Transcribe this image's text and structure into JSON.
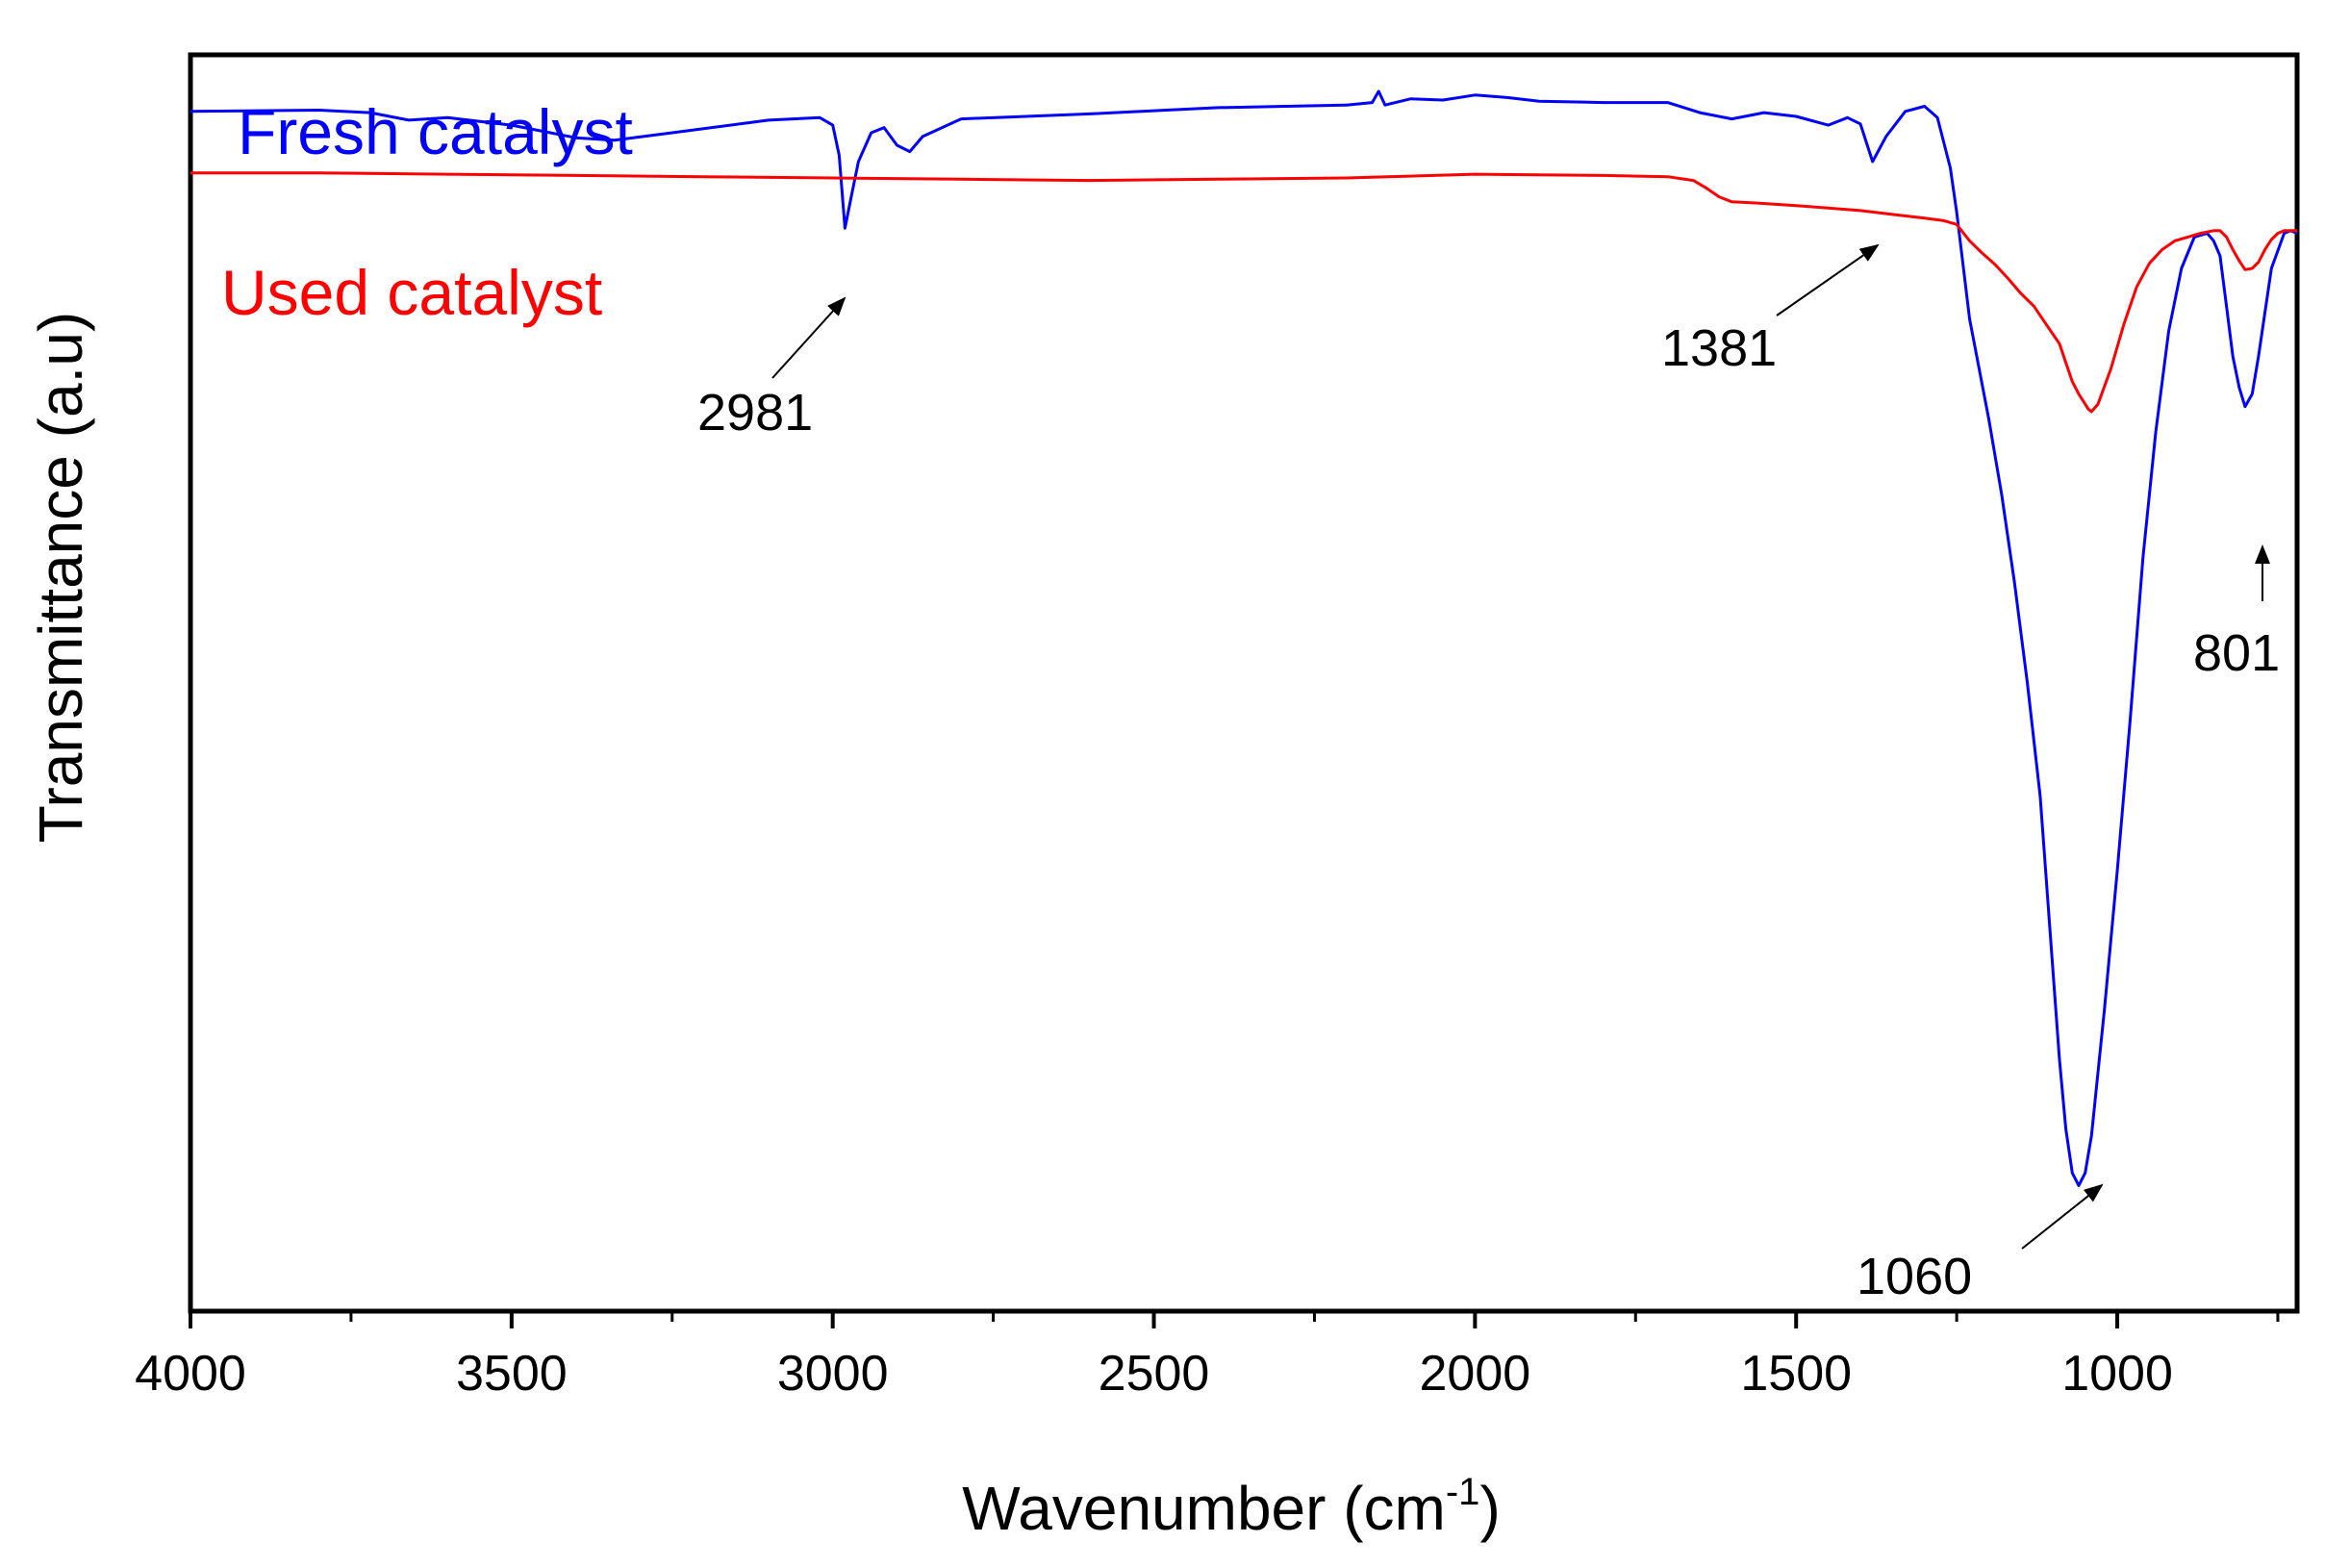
{
  "chart_data": {
    "type": "line",
    "title": "",
    "xlabel": "Wavenumber (cm",
    "xlabel_sup": "-1",
    "xlabel_close": ")",
    "ylabel": "Transmittance (a.u)",
    "xlim": [
      4000,
      720
    ],
    "x_reversed": true,
    "ylim": [
      0,
      100
    ],
    "y_ticks_shown": false,
    "grid": false,
    "x_ticks": [
      {
        "value": 4000,
        "label": "4000"
      },
      {
        "value": 3500,
        "label": "3500"
      },
      {
        "value": 3000,
        "label": "3000"
      },
      {
        "value": 2500,
        "label": "2500"
      },
      {
        "value": 2000,
        "label": "2000"
      },
      {
        "value": 1500,
        "label": "1500"
      },
      {
        "value": 1000,
        "label": "1000"
      }
    ],
    "x_minor_ticks": [
      3750,
      3250,
      2750,
      2250,
      1750,
      1250,
      750
    ],
    "legend_placement": "top-left",
    "series": [
      {
        "name": "Fresh catalyst",
        "color": "#0000ff",
        "x": [
          4000,
          3800,
          3720,
          3660,
          3600,
          3500,
          3400,
          3340,
          3250,
          3100,
          3020,
          3000,
          2990,
          2981,
          2970,
          2960,
          2940,
          2920,
          2900,
          2880,
          2860,
          2800,
          2600,
          2400,
          2200,
          2160,
          2150,
          2140,
          2100,
          2050,
          2000,
          1950,
          1900,
          1800,
          1700,
          1650,
          1600,
          1550,
          1500,
          1450,
          1420,
          1400,
          1381,
          1360,
          1330,
          1300,
          1280,
          1260,
          1250,
          1230,
          1200,
          1180,
          1160,
          1140,
          1120,
          1100,
          1090,
          1080,
          1070,
          1060,
          1050,
          1040,
          1030,
          1020,
          1000,
          980,
          960,
          940,
          920,
          900,
          880,
          860,
          850,
          840,
          830,
          820,
          810,
          801,
          790,
          780,
          760,
          740,
          730,
          720
        ],
        "y": [
          95.5,
          95.6,
          95.4,
          94.8,
          95.0,
          94.4,
          93.4,
          93.2,
          93.8,
          94.8,
          95.0,
          94.4,
          92.0,
          86.2,
          89.0,
          91.5,
          93.8,
          94.2,
          92.8,
          92.3,
          93.5,
          94.9,
          95.3,
          95.8,
          96.0,
          96.2,
          97.1,
          96.0,
          96.5,
          96.4,
          96.8,
          96.6,
          96.3,
          96.2,
          96.2,
          95.4,
          94.9,
          95.4,
          95.1,
          94.4,
          95.0,
          94.5,
          91.5,
          93.5,
          95.5,
          95.9,
          95.0,
          91.0,
          87.5,
          79.0,
          71.0,
          65.0,
          58.0,
          50.0,
          41.0,
          27.0,
          20.0,
          14.5,
          11.0,
          10.0,
          11.0,
          14.0,
          19.0,
          24.0,
          35.0,
          47.0,
          60.0,
          70.0,
          78.0,
          83.0,
          85.5,
          85.8,
          85.2,
          84.0,
          80.0,
          76.0,
          73.5,
          72.0,
          73.0,
          76.0,
          83.0,
          85.8,
          86.0,
          85.8
        ]
      },
      {
        "name": "Used catalyst",
        "color": "#ff0000",
        "x": [
          4000,
          3800,
          3600,
          3400,
          3200,
          3000,
          2800,
          2600,
          2400,
          2200,
          2000,
          1800,
          1700,
          1660,
          1640,
          1620,
          1600,
          1560,
          1500,
          1450,
          1400,
          1350,
          1300,
          1270,
          1250,
          1230,
          1210,
          1190,
          1170,
          1150,
          1130,
          1110,
          1090,
          1080,
          1070,
          1060,
          1050,
          1045,
          1040,
          1030,
          1010,
          990,
          970,
          950,
          930,
          910,
          890,
          870,
          850,
          840,
          830,
          820,
          810,
          801,
          790,
          780,
          770,
          760,
          750,
          740,
          730,
          720
        ],
        "y": [
          90.6,
          90.6,
          90.5,
          90.4,
          90.3,
          90.2,
          90.1,
          90.0,
          90.1,
          90.2,
          90.5,
          90.4,
          90.3,
          90.0,
          89.4,
          88.7,
          88.3,
          88.2,
          88.0,
          87.8,
          87.6,
          87.3,
          87.0,
          86.8,
          86.5,
          85.2,
          84.2,
          83.3,
          82.2,
          81.0,
          80.0,
          78.5,
          77.0,
          75.5,
          74.0,
          73.0,
          72.2,
          71.8,
          71.6,
          72.2,
          75.0,
          78.5,
          81.5,
          83.4,
          84.5,
          85.2,
          85.5,
          85.8,
          86.0,
          86.0,
          85.5,
          84.5,
          83.6,
          82.9,
          83.0,
          83.5,
          84.5,
          85.3,
          85.8,
          86.0,
          86.0,
          86.0
        ]
      }
    ],
    "annotations": [
      {
        "text": "2981",
        "series": "Fresh catalyst",
        "x": 2981
      },
      {
        "text": "1381",
        "series": "Fresh catalyst",
        "x": 1381
      },
      {
        "text": "1060",
        "series": "Fresh catalyst",
        "x": 1060
      },
      {
        "text": "801",
        "series": "Fresh catalyst",
        "x": 801
      }
    ]
  }
}
